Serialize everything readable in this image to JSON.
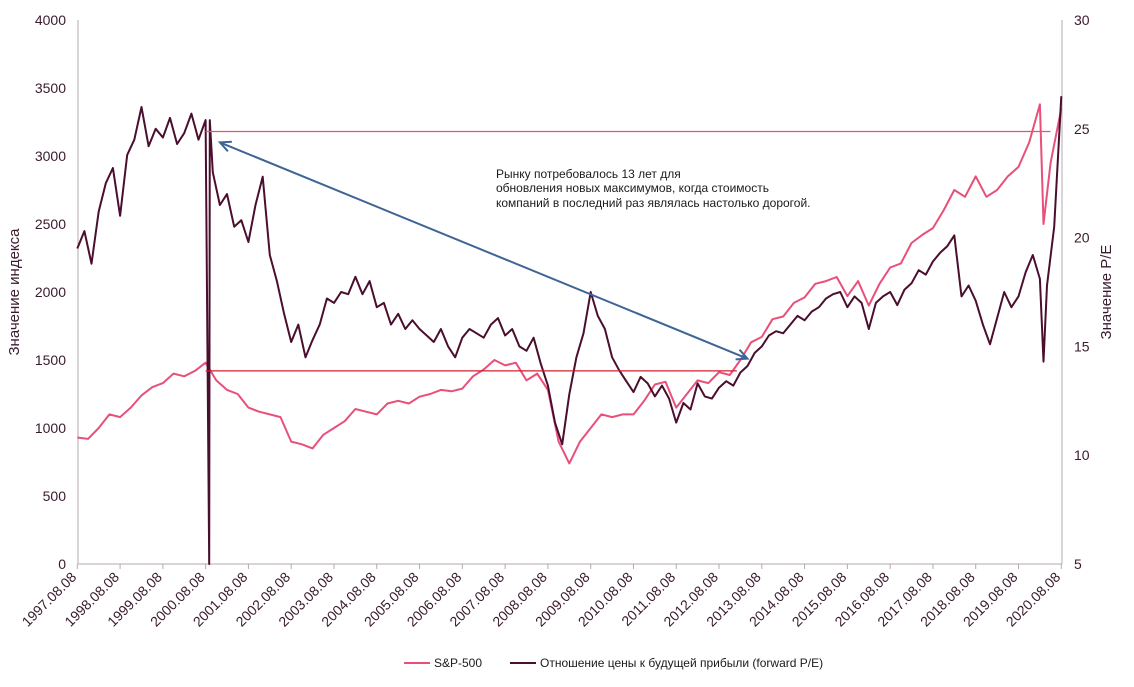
{
  "colors": {
    "sp500": "#e8507a",
    "pe": "#4a0e2e",
    "arrow": "#3f6594",
    "line_high": "#e8507a",
    "line_low": "#d41f2e",
    "text": "#3a1a2e"
  },
  "chart_data": {
    "type": "line",
    "title": "",
    "xlabel": "",
    "ylabel_left": "Значение индекса",
    "ylabel_right": "Значение P/E",
    "ylim_left": [
      0,
      4000
    ],
    "ylim_right": [
      5,
      30
    ],
    "grid": false,
    "legend_placement": "bottom",
    "y_ticks_left": [
      "0",
      "500",
      "1000",
      "1500",
      "2000",
      "2500",
      "3000",
      "3500",
      "4000"
    ],
    "y_ticks_right": [
      "5",
      "10",
      "15",
      "20",
      "25",
      "30"
    ],
    "x_tick_labels": [
      "1997.08.08",
      "1998.08.08",
      "1999.08.08",
      "2000.08.08",
      "2001.08.08",
      "2002.08.08",
      "2003.08.08",
      "2004.08.08",
      "2005.08.08",
      "2006.08.08",
      "2007.08.08",
      "2008.08.08",
      "2009.08.08",
      "2010.08.08",
      "2011.08.08",
      "2012.08.08",
      "2013.08.08",
      "2014.08.08",
      "2015.08.08",
      "2016.08.08",
      "2017.08.08",
      "2018.08.08",
      "2019.08.08",
      "2020.08.08"
    ],
    "series": [
      {
        "name": "S&P-500",
        "axis": "left",
        "x": [
          "1997.08",
          "1997.11",
          "1998.02",
          "1998.05",
          "1998.08",
          "1998.11",
          "1999.02",
          "1999.05",
          "1999.08",
          "1999.11",
          "2000.02",
          "2000.05",
          "2000.08",
          "2000.11",
          "2001.02",
          "2001.05",
          "2001.08",
          "2001.11",
          "2002.02",
          "2002.05",
          "2002.08",
          "2002.11",
          "2003.02",
          "2003.05",
          "2003.08",
          "2003.11",
          "2004.02",
          "2004.05",
          "2004.08",
          "2004.11",
          "2005.02",
          "2005.05",
          "2005.08",
          "2005.11",
          "2006.02",
          "2006.05",
          "2006.08",
          "2006.11",
          "2007.02",
          "2007.05",
          "2007.08",
          "2007.11",
          "2008.02",
          "2008.05",
          "2008.08",
          "2008.11",
          "2009.02",
          "2009.05",
          "2009.08",
          "2009.11",
          "2010.02",
          "2010.05",
          "2010.08",
          "2010.11",
          "2011.02",
          "2011.05",
          "2011.08",
          "2011.11",
          "2012.02",
          "2012.05",
          "2012.08",
          "2012.11",
          "2013.02",
          "2013.05",
          "2013.08",
          "2013.11",
          "2014.02",
          "2014.05",
          "2014.08",
          "2014.11",
          "2015.02",
          "2015.05",
          "2015.08",
          "2015.11",
          "2016.02",
          "2016.05",
          "2016.08",
          "2016.11",
          "2017.02",
          "2017.05",
          "2017.08",
          "2017.11",
          "2018.02",
          "2018.05",
          "2018.08",
          "2018.11",
          "2019.02",
          "2019.05",
          "2019.08",
          "2019.11",
          "2020.02",
          "2020.03",
          "2020.05",
          "2020.08"
        ],
        "values": [
          930,
          920,
          1000,
          1100,
          1080,
          1150,
          1240,
          1300,
          1330,
          1400,
          1380,
          1420,
          1480,
          1350,
          1280,
          1250,
          1150,
          1120,
          1100,
          1080,
          900,
          880,
          850,
          950,
          1000,
          1050,
          1140,
          1120,
          1100,
          1180,
          1200,
          1180,
          1230,
          1250,
          1280,
          1270,
          1290,
          1380,
          1430,
          1500,
          1460,
          1480,
          1350,
          1400,
          1280,
          900,
          740,
          900,
          1000,
          1100,
          1080,
          1100,
          1100,
          1200,
          1320,
          1340,
          1150,
          1250,
          1350,
          1330,
          1410,
          1390,
          1500,
          1630,
          1670,
          1800,
          1820,
          1920,
          1960,
          2060,
          2080,
          2110,
          1970,
          2080,
          1900,
          2060,
          2180,
          2210,
          2360,
          2420,
          2470,
          2600,
          2750,
          2700,
          2850,
          2700,
          2750,
          2850,
          2920,
          3100,
          3380,
          2500,
          2950,
          3350
        ]
      },
      {
        "name": "Отношение цены к будущей прибыли (forward P/E)",
        "axis": "right",
        "x": [
          "1997.08",
          "1997.10",
          "1997.12",
          "1998.02",
          "1998.04",
          "1998.06",
          "1998.08",
          "1998.10",
          "1998.12",
          "1999.02",
          "1999.04",
          "1999.06",
          "1999.08",
          "1999.10",
          "1999.12",
          "2000.02",
          "2000.04",
          "2000.06",
          "2000.08",
          "2000.10",
          "2000.12",
          "2001.02",
          "2001.04",
          "2001.06",
          "2001.08",
          "2001.10",
          "2001.12",
          "2002.02",
          "2002.04",
          "2002.06",
          "2002.08",
          "2002.10",
          "2002.12",
          "2003.02",
          "2003.04",
          "2003.06",
          "2003.08",
          "2003.10",
          "2003.12",
          "2004.02",
          "2004.04",
          "2004.06",
          "2004.08",
          "2004.10",
          "2004.12",
          "2005.02",
          "2005.04",
          "2005.06",
          "2005.08",
          "2005.10",
          "2005.12",
          "2006.02",
          "2006.04",
          "2006.06",
          "2006.08",
          "2006.10",
          "2006.12",
          "2007.02",
          "2007.04",
          "2007.06",
          "2007.08",
          "2007.10",
          "2007.12",
          "2008.02",
          "2008.04",
          "2008.06",
          "2008.08",
          "2008.10",
          "2008.12",
          "2009.02",
          "2009.04",
          "2009.06",
          "2009.08",
          "2009.10",
          "2009.12",
          "2010.02",
          "2010.04",
          "2010.06",
          "2010.08",
          "2010.10",
          "2010.12",
          "2011.02",
          "2011.04",
          "2011.06",
          "2011.08",
          "2011.10",
          "2011.12",
          "2012.02",
          "2012.04",
          "2012.06",
          "2012.08",
          "2012.10",
          "2012.12",
          "2013.02",
          "2013.04",
          "2013.06",
          "2013.08",
          "2013.10",
          "2013.12",
          "2014.02",
          "2014.04",
          "2014.06",
          "2014.08",
          "2014.10",
          "2014.12",
          "2015.02",
          "2015.04",
          "2015.06",
          "2015.08",
          "2015.10",
          "2015.12",
          "2016.02",
          "2016.04",
          "2016.06",
          "2016.08",
          "2016.10",
          "2016.12",
          "2017.02",
          "2017.04",
          "2017.06",
          "2017.08",
          "2017.10",
          "2017.12",
          "2018.02",
          "2018.04",
          "2018.06",
          "2018.08",
          "2018.10",
          "2018.12",
          "2019.02",
          "2019.04",
          "2019.06",
          "2019.08",
          "2019.10",
          "2019.12",
          "2020.02",
          "2020.03",
          "2020.04",
          "2020.06",
          "2020.08"
        ],
        "values": [
          19.5,
          20.3,
          18.8,
          21.2,
          22.5,
          23.2,
          21.0,
          23.8,
          24.5,
          26.0,
          24.2,
          25.0,
          24.6,
          25.5,
          24.3,
          24.8,
          25.7,
          24.5,
          25.4,
          23.0,
          21.5,
          22.0,
          20.5,
          20.8,
          19.8,
          21.5,
          22.8,
          19.2,
          18.0,
          16.5,
          15.2,
          16.0,
          14.5,
          15.3,
          16.0,
          17.2,
          17.0,
          17.5,
          17.4,
          18.2,
          17.4,
          18.0,
          16.8,
          17.0,
          16.0,
          16.5,
          15.8,
          16.2,
          15.8,
          15.5,
          15.2,
          15.8,
          15.0,
          14.5,
          15.4,
          15.8,
          15.6,
          15.4,
          16.0,
          16.3,
          15.5,
          15.8,
          15.0,
          14.8,
          15.4,
          14.2,
          13.2,
          11.5,
          10.5,
          12.8,
          14.5,
          15.6,
          17.5,
          16.4,
          15.8,
          14.5,
          13.9,
          13.4,
          12.9,
          13.6,
          13.3,
          12.7,
          13.2,
          12.6,
          11.5,
          12.4,
          12.1,
          13.3,
          12.7,
          12.6,
          13.1,
          13.4,
          13.2,
          13.8,
          14.1,
          14.7,
          15.0,
          15.5,
          15.7,
          15.6,
          16.0,
          16.4,
          16.2,
          16.6,
          16.8,
          17.2,
          17.4,
          17.5,
          16.8,
          17.3,
          17.0,
          15.8,
          17.0,
          17.3,
          17.5,
          16.9,
          17.6,
          17.9,
          18.5,
          18.3,
          18.9,
          19.3,
          19.6,
          20.1,
          17.3,
          17.8,
          17.1,
          16.0,
          15.1,
          16.3,
          17.5,
          16.8,
          17.3,
          18.4,
          19.2,
          18.1,
          14.3,
          17.8,
          20.5,
          26.5
        ]
      }
    ],
    "reference_lines": [
      {
        "axis": "left",
        "value": 3180,
        "x_start": "2000.08",
        "x_end": "2020.05"
      },
      {
        "axis": "left",
        "value": 1420,
        "x_start": "2000.08",
        "x_end": "2013.01"
      }
    ],
    "arrow": {
      "from_x": "2000.12",
      "from_y": 3100,
      "to_x": "2013.04",
      "to_y": 1510
    },
    "anomaly_spike": {
      "x": "2000.09",
      "axis": "right",
      "value": 5
    },
    "annotation": [
      "Рынку потребовалось 13 лет для",
      "обновления новых максимумов, когда стоимость",
      "компаний в последний раз являлась настолько дорогой."
    ]
  }
}
